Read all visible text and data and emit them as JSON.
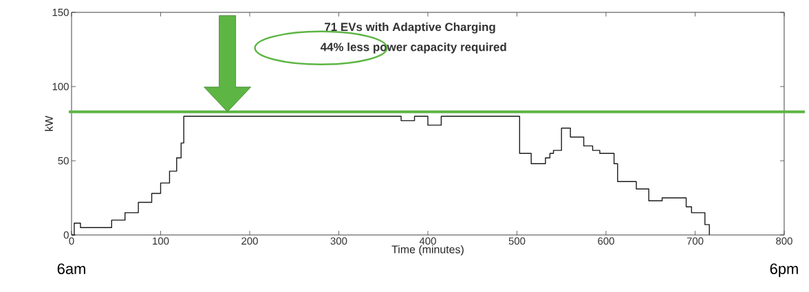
{
  "chart_data": {
    "type": "step",
    "title": "71 EVs with Adaptive Charging",
    "subtitle": "44% less power capacity required",
    "xlabel": "Time (minutes)",
    "ylabel": "kW",
    "x": [
      0,
      3,
      10,
      45,
      60,
      75,
      90,
      100,
      110,
      118,
      123,
      126,
      370,
      385,
      400,
      415,
      503,
      516,
      532,
      537,
      541,
      550,
      560,
      575,
      585,
      593,
      609,
      613,
      634,
      648,
      663,
      690,
      696,
      711,
      716
    ],
    "series": [
      {
        "color": "#1a1a1a",
        "values": [
          0,
          8,
          5,
          10,
          15,
          22,
          28,
          35,
          43,
          52,
          62,
          80,
          77,
          80,
          74,
          80,
          55,
          48,
          52,
          55,
          57,
          72,
          66,
          60,
          57,
          55,
          48,
          36,
          31,
          23,
          25,
          19,
          15,
          7,
          0
        ]
      }
    ],
    "xlim": [
      0,
      800
    ],
    "ylim": [
      0,
      150
    ],
    "xticks": [
      0,
      100,
      200,
      300,
      400,
      500,
      600,
      700,
      800
    ],
    "yticks": [
      0,
      50,
      100,
      150
    ],
    "ref_lines": [
      {
        "axis": "y",
        "value": 83,
        "color": "#5db544"
      }
    ],
    "annotations": [
      "6am",
      "6pm"
    ]
  }
}
